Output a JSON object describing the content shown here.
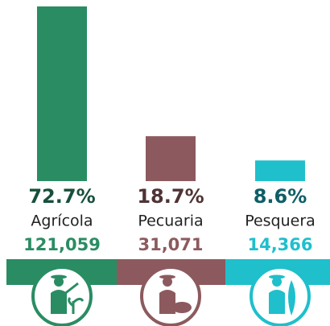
{
  "chart_data": {
    "type": "bar",
    "categories": [
      "Agrícola",
      "Pecuaria",
      "Pesquera"
    ],
    "values": [
      72.7,
      18.7,
      8.6
    ],
    "value_labels": [
      "72.7%",
      "18.7%",
      "8.6%"
    ],
    "counts": [
      121059,
      31071,
      14366
    ],
    "count_labels": [
      "121,059",
      "31,071",
      "14,366"
    ],
    "colors": [
      "#2a8c63",
      "#8c5a5e",
      "#1fbfcc"
    ],
    "label_colors": [
      "#17503a",
      "#4f3335",
      "#0f5e66"
    ]
  }
}
